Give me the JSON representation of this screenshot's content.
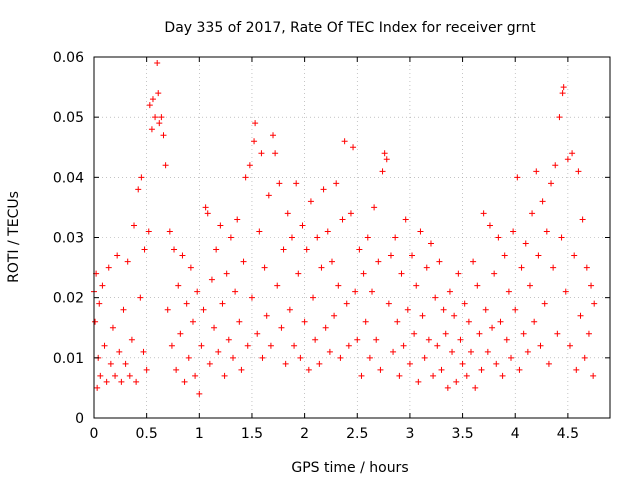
{
  "chart_data": {
    "type": "scatter",
    "title": "Day 335 of 2017, Rate Of TEC Index for receiver grnt",
    "xlabel": "GPS time / hours",
    "ylabel": "ROTI / TECUs",
    "xlim": [
      0,
      4.9
    ],
    "ylim": [
      0,
      0.06
    ],
    "xticks": [
      "0",
      "0.5",
      "1",
      "1.5",
      "2",
      "2.5",
      "3",
      "3.5",
      "4",
      "4.5"
    ],
    "yticks": [
      "0",
      "0.01",
      "0.02",
      "0.03",
      "0.04",
      "0.05",
      "0.06"
    ],
    "xtick_values": [
      0,
      0.5,
      1,
      1.5,
      2,
      2.5,
      3,
      3.5,
      4,
      4.5
    ],
    "ytick_values": [
      0,
      0.01,
      0.02,
      0.03,
      0.04,
      0.05,
      0.06
    ],
    "grid": true,
    "marker": "plus",
    "color": "#ff0000",
    "series": [
      {
        "values": [
          [
            0.0,
            0.021
          ],
          [
            0.01,
            0.016
          ],
          [
            0.02,
            0.024
          ],
          [
            0.03,
            0.005
          ],
          [
            0.04,
            0.01
          ],
          [
            0.05,
            0.019
          ],
          [
            0.06,
            0.007
          ],
          [
            0.08,
            0.022
          ],
          [
            0.1,
            0.012
          ],
          [
            0.12,
            0.006
          ],
          [
            0.14,
            0.025
          ],
          [
            0.16,
            0.009
          ],
          [
            0.18,
            0.015
          ],
          [
            0.2,
            0.007
          ],
          [
            0.22,
            0.027
          ],
          [
            0.24,
            0.011
          ],
          [
            0.26,
            0.006
          ],
          [
            0.28,
            0.018
          ],
          [
            0.3,
            0.009
          ],
          [
            0.32,
            0.026
          ],
          [
            0.34,
            0.007
          ],
          [
            0.36,
            0.013
          ],
          [
            0.38,
            0.032
          ],
          [
            0.4,
            0.006
          ],
          [
            0.42,
            0.038
          ],
          [
            0.44,
            0.02
          ],
          [
            0.45,
            0.04
          ],
          [
            0.47,
            0.011
          ],
          [
            0.48,
            0.028
          ],
          [
            0.5,
            0.008
          ],
          [
            0.52,
            0.031
          ],
          [
            0.53,
            0.052
          ],
          [
            0.55,
            0.048
          ],
          [
            0.56,
            0.053
          ],
          [
            0.58,
            0.05
          ],
          [
            0.6,
            0.059
          ],
          [
            0.61,
            0.054
          ],
          [
            0.62,
            0.049
          ],
          [
            0.64,
            0.05
          ],
          [
            0.66,
            0.047
          ],
          [
            0.68,
            0.042
          ],
          [
            0.7,
            0.018
          ],
          [
            0.72,
            0.031
          ],
          [
            0.74,
            0.012
          ],
          [
            0.76,
            0.028
          ],
          [
            0.78,
            0.008
          ],
          [
            0.8,
            0.022
          ],
          [
            0.82,
            0.014
          ],
          [
            0.84,
            0.027
          ],
          [
            0.86,
            0.006
          ],
          [
            0.88,
            0.019
          ],
          [
            0.9,
            0.01
          ],
          [
            0.92,
            0.025
          ],
          [
            0.94,
            0.016
          ],
          [
            0.96,
            0.007
          ],
          [
            0.98,
            0.021
          ],
          [
            1.0,
            0.004
          ],
          [
            1.02,
            0.012
          ],
          [
            1.04,
            0.018
          ],
          [
            1.06,
            0.035
          ],
          [
            1.08,
            0.034
          ],
          [
            1.1,
            0.009
          ],
          [
            1.12,
            0.023
          ],
          [
            1.14,
            0.015
          ],
          [
            1.16,
            0.028
          ],
          [
            1.18,
            0.011
          ],
          [
            1.2,
            0.032
          ],
          [
            1.22,
            0.019
          ],
          [
            1.24,
            0.007
          ],
          [
            1.26,
            0.024
          ],
          [
            1.28,
            0.013
          ],
          [
            1.3,
            0.03
          ],
          [
            1.32,
            0.01
          ],
          [
            1.34,
            0.021
          ],
          [
            1.36,
            0.033
          ],
          [
            1.38,
            0.016
          ],
          [
            1.4,
            0.008
          ],
          [
            1.42,
            0.026
          ],
          [
            1.44,
            0.04
          ],
          [
            1.46,
            0.012
          ],
          [
            1.48,
            0.042
          ],
          [
            1.5,
            0.02
          ],
          [
            1.52,
            0.046
          ],
          [
            1.53,
            0.049
          ],
          [
            1.55,
            0.014
          ],
          [
            1.57,
            0.031
          ],
          [
            1.59,
            0.044
          ],
          [
            1.6,
            0.01
          ],
          [
            1.62,
            0.025
          ],
          [
            1.64,
            0.017
          ],
          [
            1.66,
            0.037
          ],
          [
            1.68,
            0.012
          ],
          [
            1.7,
            0.047
          ],
          [
            1.72,
            0.044
          ],
          [
            1.74,
            0.022
          ],
          [
            1.76,
            0.039
          ],
          [
            1.78,
            0.015
          ],
          [
            1.8,
            0.028
          ],
          [
            1.82,
            0.009
          ],
          [
            1.84,
            0.034
          ],
          [
            1.86,
            0.018
          ],
          [
            1.88,
            0.03
          ],
          [
            1.9,
            0.012
          ],
          [
            1.92,
            0.039
          ],
          [
            1.94,
            0.024
          ],
          [
            1.96,
            0.01
          ],
          [
            1.98,
            0.032
          ],
          [
            2.0,
            0.016
          ],
          [
            2.02,
            0.028
          ],
          [
            2.04,
            0.008
          ],
          [
            2.06,
            0.036
          ],
          [
            2.08,
            0.02
          ],
          [
            2.1,
            0.013
          ],
          [
            2.12,
            0.03
          ],
          [
            2.14,
            0.009
          ],
          [
            2.16,
            0.025
          ],
          [
            2.18,
            0.038
          ],
          [
            2.2,
            0.015
          ],
          [
            2.22,
            0.031
          ],
          [
            2.24,
            0.011
          ],
          [
            2.26,
            0.026
          ],
          [
            2.28,
            0.017
          ],
          [
            2.3,
            0.039
          ],
          [
            2.32,
            0.022
          ],
          [
            2.34,
            0.01
          ],
          [
            2.36,
            0.033
          ],
          [
            2.38,
            0.046
          ],
          [
            2.4,
            0.019
          ],
          [
            2.42,
            0.012
          ],
          [
            2.44,
            0.034
          ],
          [
            2.46,
            0.045
          ],
          [
            2.48,
            0.021
          ],
          [
            2.5,
            0.013
          ],
          [
            2.52,
            0.028
          ],
          [
            2.54,
            0.007
          ],
          [
            2.56,
            0.024
          ],
          [
            2.58,
            0.016
          ],
          [
            2.6,
            0.03
          ],
          [
            2.62,
            0.01
          ],
          [
            2.64,
            0.021
          ],
          [
            2.66,
            0.035
          ],
          [
            2.68,
            0.013
          ],
          [
            2.7,
            0.026
          ],
          [
            2.72,
            0.008
          ],
          [
            2.74,
            0.041
          ],
          [
            2.76,
            0.044
          ],
          [
            2.78,
            0.043
          ],
          [
            2.8,
            0.019
          ],
          [
            2.82,
            0.027
          ],
          [
            2.84,
            0.011
          ],
          [
            2.86,
            0.03
          ],
          [
            2.88,
            0.016
          ],
          [
            2.9,
            0.007
          ],
          [
            2.92,
            0.024
          ],
          [
            2.94,
            0.012
          ],
          [
            2.96,
            0.033
          ],
          [
            2.98,
            0.018
          ],
          [
            3.0,
            0.009
          ],
          [
            3.02,
            0.027
          ],
          [
            3.04,
            0.014
          ],
          [
            3.06,
            0.022
          ],
          [
            3.08,
            0.006
          ],
          [
            3.1,
            0.031
          ],
          [
            3.12,
            0.017
          ],
          [
            3.14,
            0.01
          ],
          [
            3.16,
            0.025
          ],
          [
            3.18,
            0.013
          ],
          [
            3.2,
            0.029
          ],
          [
            3.22,
            0.007
          ],
          [
            3.24,
            0.02
          ],
          [
            3.26,
            0.012
          ],
          [
            3.28,
            0.026
          ],
          [
            3.3,
            0.008
          ],
          [
            3.32,
            0.018
          ],
          [
            3.34,
            0.014
          ],
          [
            3.36,
            0.005
          ],
          [
            3.38,
            0.021
          ],
          [
            3.4,
            0.011
          ],
          [
            3.42,
            0.017
          ],
          [
            3.44,
            0.006
          ],
          [
            3.46,
            0.024
          ],
          [
            3.48,
            0.013
          ],
          [
            3.5,
            0.009
          ],
          [
            3.52,
            0.019
          ],
          [
            3.54,
            0.007
          ],
          [
            3.56,
            0.016
          ],
          [
            3.58,
            0.011
          ],
          [
            3.6,
            0.026
          ],
          [
            3.62,
            0.005
          ],
          [
            3.64,
            0.022
          ],
          [
            3.66,
            0.014
          ],
          [
            3.68,
            0.008
          ],
          [
            3.7,
            0.034
          ],
          [
            3.72,
            0.018
          ],
          [
            3.74,
            0.011
          ],
          [
            3.76,
            0.032
          ],
          [
            3.78,
            0.015
          ],
          [
            3.8,
            0.024
          ],
          [
            3.82,
            0.009
          ],
          [
            3.84,
            0.03
          ],
          [
            3.86,
            0.016
          ],
          [
            3.88,
            0.007
          ],
          [
            3.9,
            0.027
          ],
          [
            3.92,
            0.013
          ],
          [
            3.94,
            0.021
          ],
          [
            3.96,
            0.01
          ],
          [
            3.98,
            0.031
          ],
          [
            4.0,
            0.018
          ],
          [
            4.02,
            0.04
          ],
          [
            4.04,
            0.008
          ],
          [
            4.06,
            0.025
          ],
          [
            4.08,
            0.014
          ],
          [
            4.1,
            0.029
          ],
          [
            4.12,
            0.011
          ],
          [
            4.14,
            0.022
          ],
          [
            4.16,
            0.034
          ],
          [
            4.18,
            0.016
          ],
          [
            4.2,
            0.041
          ],
          [
            4.22,
            0.027
          ],
          [
            4.24,
            0.012
          ],
          [
            4.26,
            0.036
          ],
          [
            4.28,
            0.019
          ],
          [
            4.3,
            0.031
          ],
          [
            4.32,
            0.009
          ],
          [
            4.34,
            0.039
          ],
          [
            4.36,
            0.025
          ],
          [
            4.38,
            0.042
          ],
          [
            4.4,
            0.014
          ],
          [
            4.42,
            0.05
          ],
          [
            4.44,
            0.03
          ],
          [
            4.45,
            0.054
          ],
          [
            4.46,
            0.055
          ],
          [
            4.48,
            0.021
          ],
          [
            4.5,
            0.043
          ],
          [
            4.52,
            0.012
          ],
          [
            4.54,
            0.044
          ],
          [
            4.56,
            0.027
          ],
          [
            4.58,
            0.008
          ],
          [
            4.6,
            0.041
          ],
          [
            4.62,
            0.017
          ],
          [
            4.64,
            0.033
          ],
          [
            4.66,
            0.01
          ],
          [
            4.68,
            0.025
          ],
          [
            4.7,
            0.014
          ],
          [
            4.72,
            0.022
          ],
          [
            4.74,
            0.007
          ],
          [
            4.75,
            0.019
          ]
        ]
      }
    ]
  }
}
